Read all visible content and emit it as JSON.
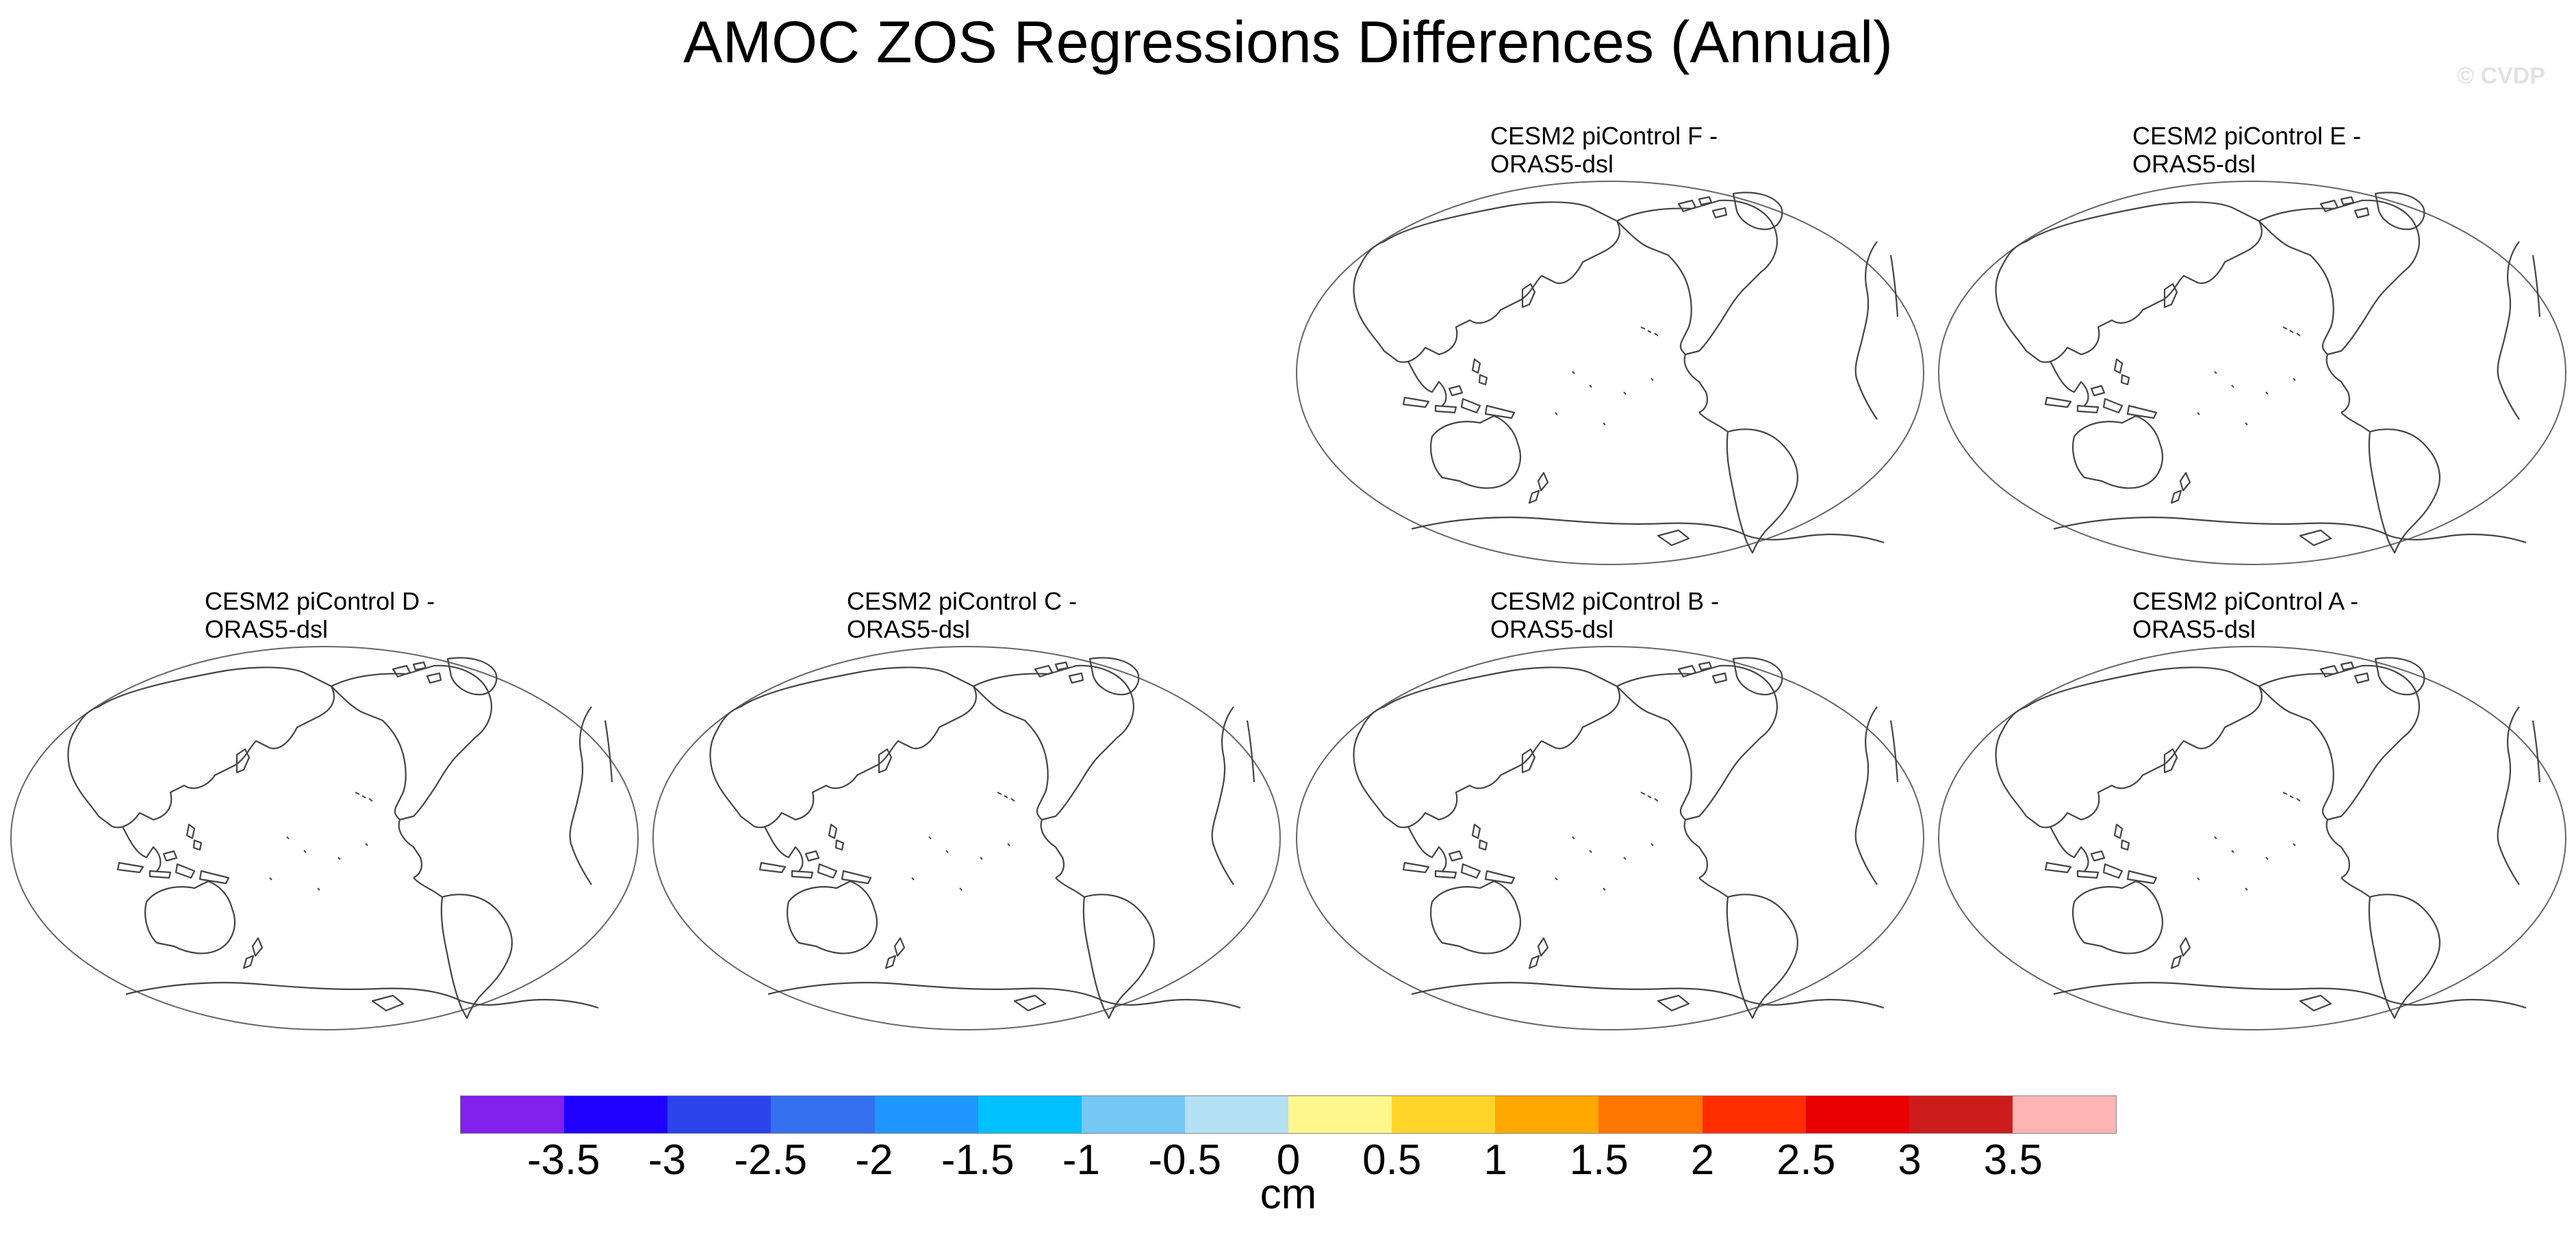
{
  "title": "AMOC ZOS Regressions Differences (Annual)",
  "watermark": "© CVDP",
  "panels": [
    {
      "line1": "CESM2 piControl F -",
      "line2": "ORAS5-dsl"
    },
    {
      "line1": "CESM2 piControl E -",
      "line2": "ORAS5-dsl"
    },
    {
      "line1": "CESM2 piControl D -",
      "line2": "ORAS5-dsl"
    },
    {
      "line1": "CESM2 piControl C -",
      "line2": "ORAS5-dsl"
    },
    {
      "line1": "CESM2 piControl B -",
      "line2": "ORAS5-dsl"
    },
    {
      "line1": "CESM2 piControl A -",
      "line2": "ORAS5-dsl"
    }
  ],
  "colorbar": {
    "units": "cm",
    "colors": [
      "#8220ed",
      "#1f00ff",
      "#2b44ea",
      "#3270ed",
      "#1d97ff",
      "#00c1ff",
      "#73c9f4",
      "#b4e0f4",
      "#fff68c",
      "#ffd52b",
      "#ffa800",
      "#ff7600",
      "#ff2d00",
      "#ea0000",
      "#cd1c1c",
      "#ffb4b4"
    ],
    "ticks": [
      "-3.5",
      "-3",
      "-2.5",
      "-2",
      "-1.5",
      "-1",
      "-0.5",
      "0",
      "0.5",
      "1",
      "1.5",
      "2",
      "2.5",
      "3",
      "3.5"
    ]
  }
}
